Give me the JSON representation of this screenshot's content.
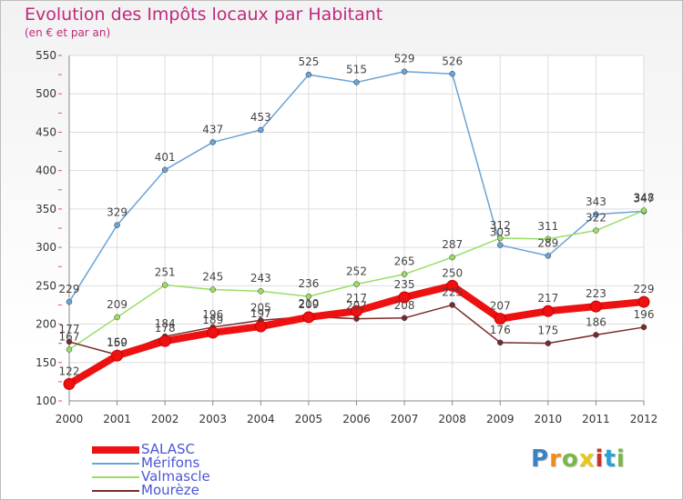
{
  "header": {
    "title": "Evolution des Impôts locaux par Habitant",
    "subtitle": "(en € et par an)"
  },
  "logo": {
    "text": "Proxiti",
    "letter_colors": [
      "#3b82c4",
      "#f28a1e",
      "#7ab648",
      "#e8c51a",
      "#c9302c",
      "#2aa0d8",
      "#7ab648"
    ]
  },
  "chart_data": {
    "type": "line",
    "title": "Evolution des Impôts locaux par Habitant",
    "subtitle": "(en € et par an)",
    "xlabel": "",
    "ylabel": "",
    "x": [
      "2000",
      "2001",
      "2002",
      "2003",
      "2004",
      "2005",
      "2006",
      "2007",
      "2008",
      "2009",
      "2010",
      "2011",
      "2012"
    ],
    "ylim": [
      100,
      550
    ],
    "yticks": [
      100,
      150,
      200,
      250,
      300,
      350,
      400,
      450,
      500,
      550
    ],
    "grid": true,
    "legend_position": "bottom-left",
    "series": [
      {
        "name": "SALASC",
        "color": "#ee1111",
        "values": [
          122,
          159,
          178,
          189,
          197,
          209,
          217,
          235,
          250,
          207,
          217,
          223,
          229
        ]
      },
      {
        "name": "Mérifons",
        "color": "#6aa3d6",
        "values": [
          229,
          329,
          401,
          437,
          453,
          525,
          515,
          529,
          526,
          303,
          289,
          343,
          347
        ]
      },
      {
        "name": "Valmascle",
        "color": "#99dd66",
        "values": [
          167,
          209,
          251,
          245,
          243,
          236,
          252,
          265,
          287,
          312,
          311,
          322,
          348
        ]
      },
      {
        "name": "Mourèze",
        "color": "#7a2a2a",
        "values": [
          177,
          160,
          184,
          196,
          205,
          210,
          207,
          208,
          225,
          176,
          175,
          186,
          196
        ]
      }
    ]
  }
}
